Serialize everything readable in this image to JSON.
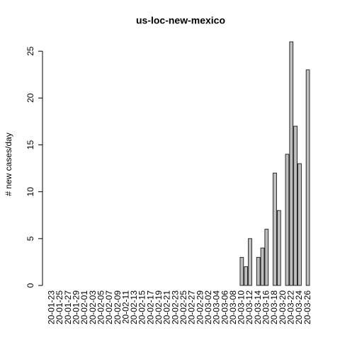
{
  "chart_data": {
    "type": "bar",
    "title": "us-loc-new-mexico",
    "y_label": "# new cases/day",
    "categories": [
      "20-01-23",
      null,
      "20-01-25",
      null,
      "20-01-27",
      null,
      "20-01-29",
      null,
      "20-02-01",
      null,
      "20-02-03",
      null,
      "20-02-05",
      null,
      "20-02-07",
      null,
      "20-02-09",
      null,
      "20-02-11",
      null,
      "20-02-13",
      null,
      "20-02-15",
      null,
      "20-02-17",
      null,
      "20-02-19",
      null,
      "20-02-21",
      null,
      "20-02-23",
      null,
      "20-02-25",
      null,
      "20-02-27",
      null,
      "20-02-29",
      null,
      "20-03-02",
      null,
      "20-03-04",
      null,
      "20-03-06",
      null,
      "20-03-08",
      null,
      "20-03-10",
      null,
      "20-03-12",
      null,
      "20-03-14",
      null,
      "20-03-16",
      null,
      "20-03-18",
      null,
      "20-03-20",
      null,
      "20-03-22",
      null,
      "20-03-24",
      null,
      "20-03-26"
    ],
    "values": [
      0,
      0,
      0,
      0,
      0,
      0,
      0,
      0,
      0,
      0,
      0,
      0,
      0,
      0,
      0,
      0,
      0,
      0,
      0,
      0,
      0,
      0,
      0,
      0,
      0,
      0,
      0,
      0,
      0,
      0,
      0,
      0,
      0,
      0,
      0,
      0,
      0,
      0,
      0,
      0,
      0,
      0,
      0,
      0,
      0,
      0,
      3,
      2,
      5,
      0,
      3,
      4,
      6,
      0,
      12,
      8,
      0,
      14,
      26,
      17,
      13,
      0,
      23
    ],
    "color": "#bebebe",
    "ylim": [
      0,
      26
    ],
    "yticks": [
      0,
      5,
      10,
      15,
      20,
      25
    ]
  }
}
